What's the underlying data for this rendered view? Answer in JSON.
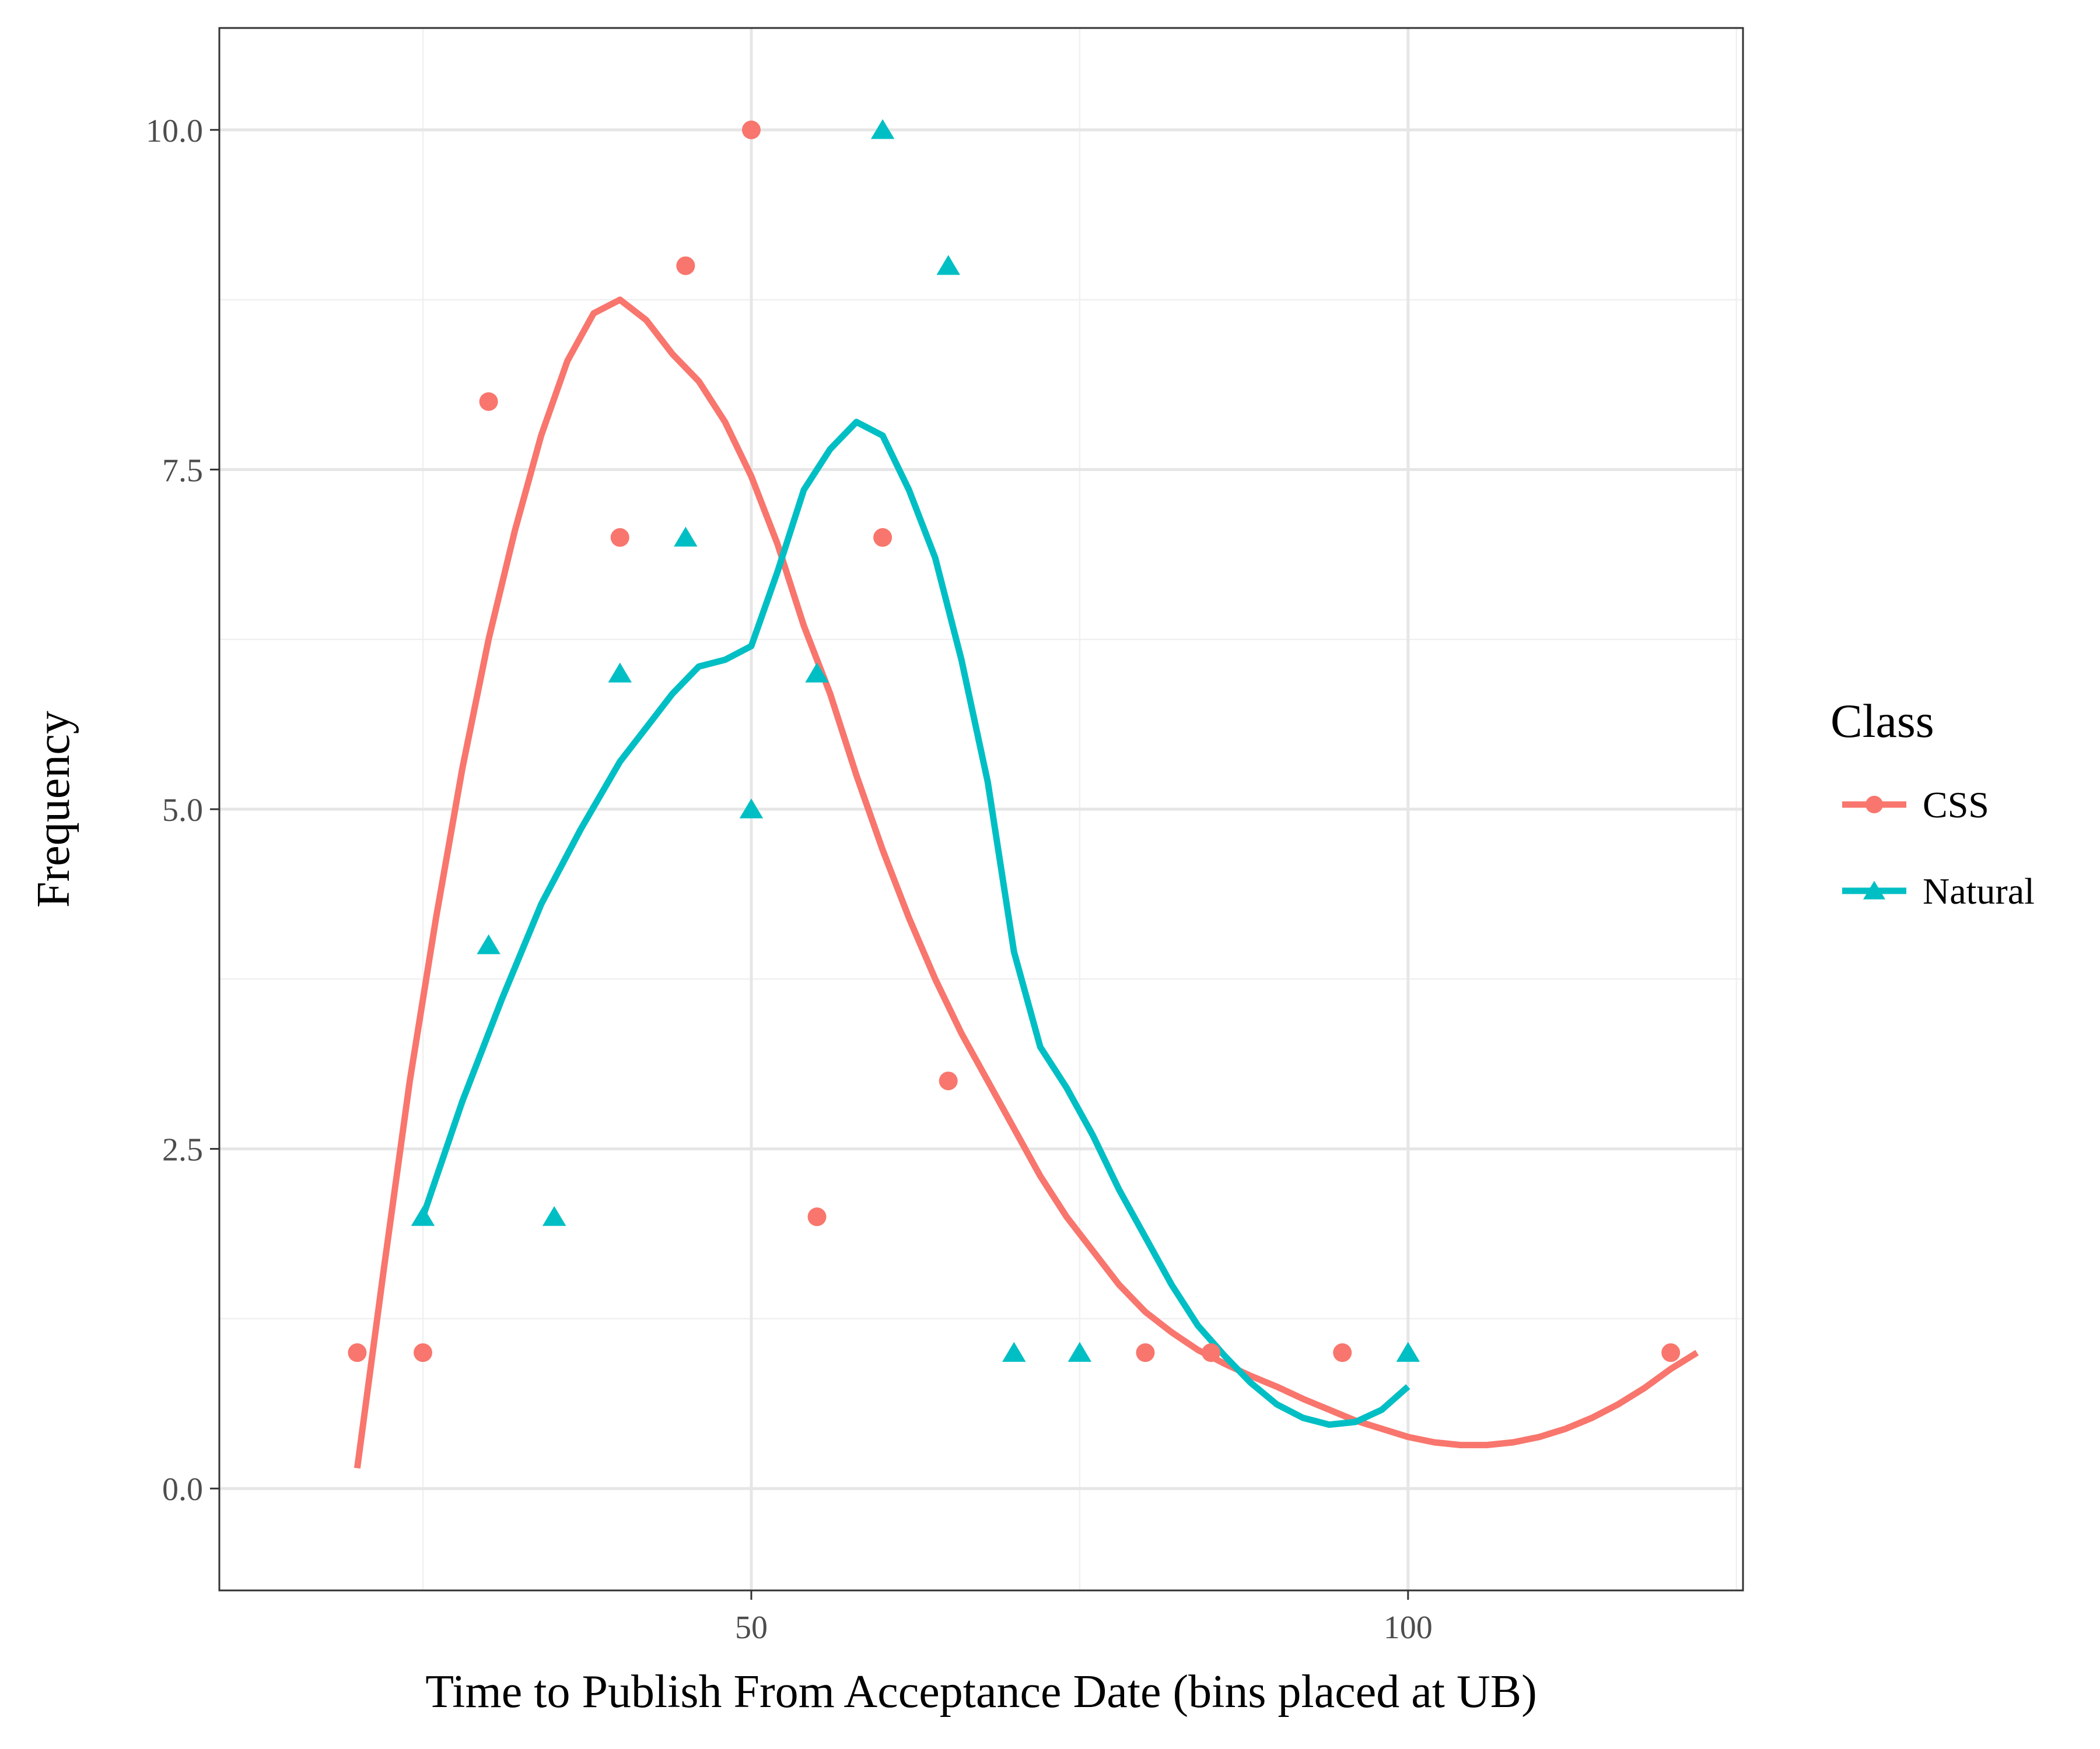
{
  "chart_data": {
    "type": "scatter",
    "xlabel": "Time to Publish From Acceptance Date (bins placed at UB)",
    "ylabel": "Frequency",
    "xlim": [
      9.5,
      125.5
    ],
    "ylim": [
      -0.75,
      10.75
    ],
    "xticks": [
      50,
      100
    ],
    "xtick_labels": [
      "50",
      "100"
    ],
    "xminor": [
      25,
      75,
      125
    ],
    "yticks": [
      0,
      2.5,
      5,
      7.5,
      10
    ],
    "ytick_labels": [
      "0.0",
      "2.5",
      "5.0",
      "7.5",
      "10.0"
    ],
    "yminor": [
      1.25,
      3.75,
      6.25,
      8.75
    ],
    "grid": true,
    "legend": {
      "title": "Class",
      "placement": "right",
      "entries": [
        "CSS",
        "Natural"
      ]
    },
    "series": [
      {
        "name": "CSS",
        "color": "#F8766D",
        "marker": "circle",
        "points": [
          [
            20,
            1
          ],
          [
            25,
            1
          ],
          [
            30,
            8
          ],
          [
            40,
            7
          ],
          [
            45,
            9
          ],
          [
            50,
            10
          ],
          [
            55,
            2
          ],
          [
            60,
            7
          ],
          [
            65,
            3
          ],
          [
            80,
            1
          ],
          [
            85,
            1
          ],
          [
            95,
            1
          ],
          [
            120,
            1
          ]
        ],
        "smooth": [
          [
            20,
            0.15
          ],
          [
            22,
            1.6
          ],
          [
            24,
            3.0
          ],
          [
            26,
            4.2
          ],
          [
            28,
            5.3
          ],
          [
            30,
            6.25
          ],
          [
            32,
            7.05
          ],
          [
            34,
            7.75
          ],
          [
            36,
            8.3
          ],
          [
            38,
            8.65
          ],
          [
            40,
            8.75
          ],
          [
            42,
            8.6
          ],
          [
            44,
            8.35
          ],
          [
            46,
            8.15
          ],
          [
            48,
            7.85
          ],
          [
            50,
            7.45
          ],
          [
            52,
            6.95
          ],
          [
            54,
            6.35
          ],
          [
            56,
            5.85
          ],
          [
            58,
            5.25
          ],
          [
            60,
            4.7
          ],
          [
            62,
            4.2
          ],
          [
            64,
            3.75
          ],
          [
            66,
            3.35
          ],
          [
            68,
            3.0
          ],
          [
            70,
            2.65
          ],
          [
            72,
            2.3
          ],
          [
            74,
            2.0
          ],
          [
            76,
            1.75
          ],
          [
            78,
            1.5
          ],
          [
            80,
            1.3
          ],
          [
            82,
            1.15
          ],
          [
            84,
            1.02
          ],
          [
            86,
            0.92
          ],
          [
            88,
            0.83
          ],
          [
            90,
            0.75
          ],
          [
            92,
            0.66
          ],
          [
            94,
            0.58
          ],
          [
            96,
            0.5
          ],
          [
            98,
            0.44
          ],
          [
            100,
            0.38
          ],
          [
            102,
            0.34
          ],
          [
            104,
            0.32
          ],
          [
            106,
            0.32
          ],
          [
            108,
            0.34
          ],
          [
            110,
            0.38
          ],
          [
            112,
            0.44
          ],
          [
            114,
            0.52
          ],
          [
            116,
            0.62
          ],
          [
            118,
            0.74
          ],
          [
            120,
            0.88
          ],
          [
            122,
            1.0
          ]
        ]
      },
      {
        "name": "Natural",
        "color": "#00BFC4",
        "marker": "triangle",
        "points": [
          [
            25,
            2
          ],
          [
            30,
            4
          ],
          [
            35,
            2
          ],
          [
            40,
            6
          ],
          [
            45,
            7
          ],
          [
            50,
            5
          ],
          [
            55,
            6
          ],
          [
            60,
            10
          ],
          [
            65,
            9
          ],
          [
            70,
            1
          ],
          [
            75,
            1
          ],
          [
            100,
            1
          ]
        ],
        "smooth": [
          [
            25,
            2.0
          ],
          [
            28,
            2.85
          ],
          [
            31,
            3.6
          ],
          [
            34,
            4.3
          ],
          [
            37,
            4.85
          ],
          [
            40,
            5.35
          ],
          [
            42,
            5.6
          ],
          [
            44,
            5.85
          ],
          [
            46,
            6.05
          ],
          [
            48,
            6.1
          ],
          [
            50,
            6.2
          ],
          [
            52,
            6.75
          ],
          [
            54,
            7.35
          ],
          [
            56,
            7.65
          ],
          [
            58,
            7.85
          ],
          [
            60,
            7.75
          ],
          [
            62,
            7.35
          ],
          [
            64,
            6.85
          ],
          [
            66,
            6.1
          ],
          [
            68,
            5.2
          ],
          [
            70,
            3.95
          ],
          [
            72,
            3.25
          ],
          [
            74,
            2.95
          ],
          [
            76,
            2.6
          ],
          [
            78,
            2.2
          ],
          [
            80,
            1.85
          ],
          [
            82,
            1.5
          ],
          [
            84,
            1.2
          ],
          [
            86,
            0.98
          ],
          [
            88,
            0.78
          ],
          [
            90,
            0.62
          ],
          [
            92,
            0.52
          ],
          [
            94,
            0.47
          ],
          [
            96,
            0.49
          ],
          [
            98,
            0.58
          ],
          [
            100,
            0.75
          ]
        ]
      }
    ]
  }
}
